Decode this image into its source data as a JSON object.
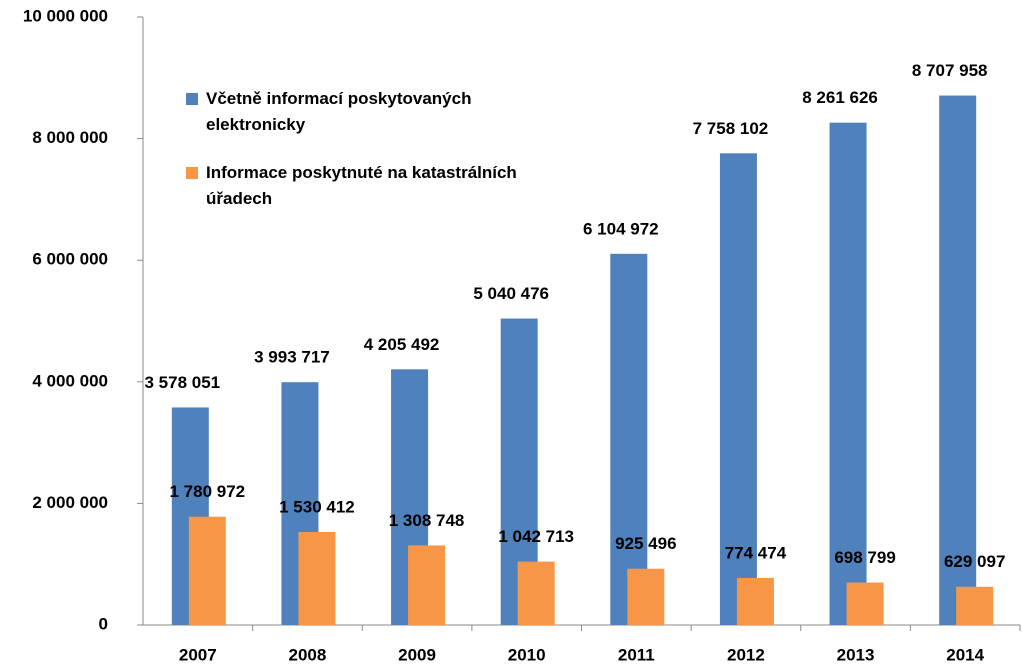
{
  "chart_data": {
    "type": "bar",
    "categories": [
      "2007",
      "2008",
      "2009",
      "2010",
      "2011",
      "2012",
      "2013",
      "2014"
    ],
    "series": [
      {
        "name": "Včetně informací poskytovaných elektronicky",
        "color": "#4f81bd",
        "values": [
          3578051,
          3993717,
          4205492,
          5040476,
          6104972,
          7758102,
          8261626,
          8707958
        ],
        "value_labels": [
          "3 578 051",
          "3 993 717",
          "4 205 492",
          "5 040 476",
          "6 104 972",
          "7 758 102",
          "8 261 626",
          "8 707 958"
        ]
      },
      {
        "name": "Informace poskytnuté na katastrálních úřadech",
        "color": "#f79646",
        "values": [
          1780972,
          1530412,
          1308748,
          1042713,
          925496,
          774474,
          698799,
          629097
        ],
        "value_labels": [
          "1 780 972",
          "1 530 412",
          "1 308 748",
          "1 042 713",
          "925 496",
          "774 474",
          "698 799",
          "629 097"
        ]
      }
    ],
    "ylim": [
      0,
      10000000
    ],
    "yticks": [
      {
        "value": 0,
        "label": "0"
      },
      {
        "value": 2000000,
        "label": "2 000 000"
      },
      {
        "value": 4000000,
        "label": "4 000 000"
      },
      {
        "value": 6000000,
        "label": "6 000 000"
      },
      {
        "value": 8000000,
        "label": "8 000 000"
      },
      {
        "value": 10000000,
        "label": "10 000 000"
      }
    ],
    "grid": false,
    "legend": "top-left"
  }
}
